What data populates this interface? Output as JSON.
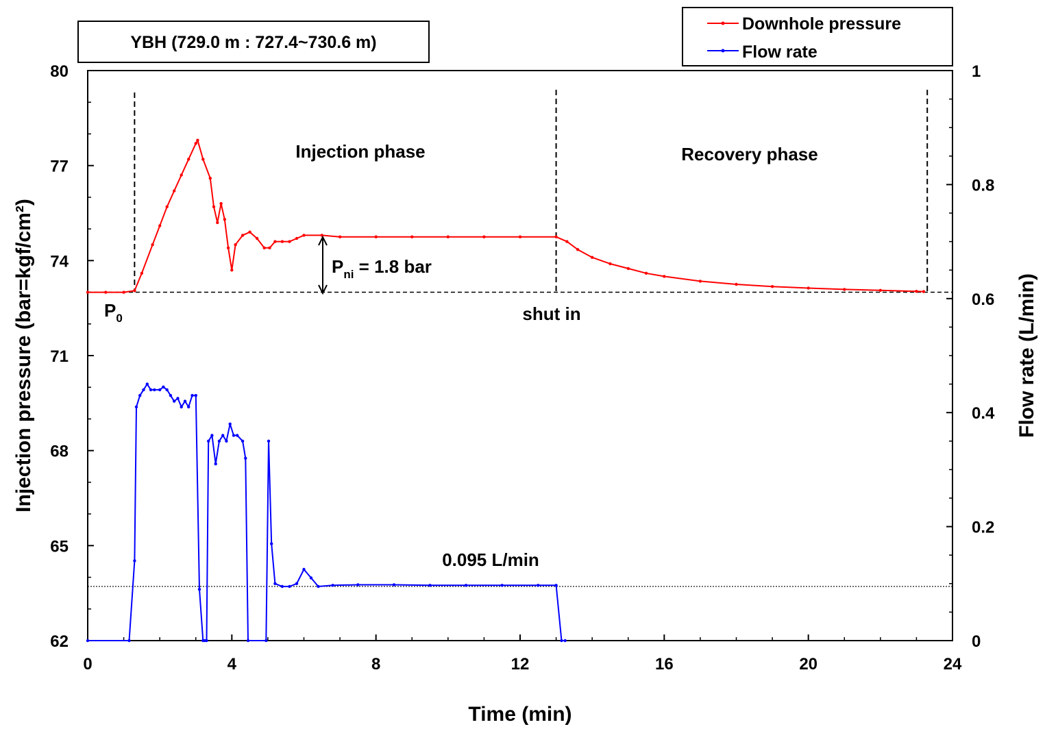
{
  "chart_data": {
    "type": "line",
    "title": "YBH (729.0 m : 727.4~730.6 m)",
    "xlabel": "Time (min)",
    "ylabel_left": "Injection pressure (bar=kgf/cm²)",
    "ylabel_right": "Flow rate (L/min)",
    "xlim": [
      0,
      24
    ],
    "ylim_left": [
      62,
      80
    ],
    "ylim_right": [
      0,
      1
    ],
    "x_ticks": [
      0,
      4,
      8,
      12,
      16,
      20,
      24
    ],
    "y_left_ticks": [
      62,
      65,
      68,
      71,
      74,
      77,
      80
    ],
    "y_right_ticks": [
      0,
      0.2,
      0.4,
      0.6,
      0.8,
      1
    ],
    "colors": {
      "pressure": "#ff0000",
      "flow": "#0000ff",
      "axis": "#000000"
    },
    "legend_position": "top-right",
    "series": [
      {
        "name": "Downhole pressure",
        "axis": "left",
        "color": "#ff0000",
        "x": [
          0,
          0.5,
          1.0,
          1.3,
          1.5,
          1.8,
          2.0,
          2.2,
          2.4,
          2.6,
          2.8,
          3.0,
          3.05,
          3.2,
          3.4,
          3.5,
          3.6,
          3.7,
          3.8,
          3.9,
          4.0,
          4.1,
          4.3,
          4.5,
          4.7,
          4.9,
          5.05,
          5.2,
          5.4,
          5.6,
          5.8,
          6.0,
          6.5,
          7.0,
          8.0,
          9.0,
          10.0,
          11.0,
          12.0,
          13.0,
          13.3,
          13.6,
          14.0,
          14.5,
          15.0,
          15.5,
          16.0,
          17.0,
          18.0,
          19.0,
          20.0,
          21.0,
          22.0,
          23.0,
          23.2
        ],
        "y": [
          73.0,
          73.0,
          73.0,
          73.05,
          73.6,
          74.5,
          75.1,
          75.7,
          76.2,
          76.7,
          77.2,
          77.7,
          77.8,
          77.2,
          76.6,
          75.7,
          75.2,
          75.8,
          75.3,
          74.4,
          73.7,
          74.5,
          74.8,
          74.9,
          74.7,
          74.4,
          74.4,
          74.6,
          74.6,
          74.6,
          74.7,
          74.8,
          74.8,
          74.75,
          74.75,
          74.75,
          74.75,
          74.75,
          74.75,
          74.75,
          74.6,
          74.35,
          74.1,
          73.9,
          73.75,
          73.6,
          73.5,
          73.35,
          73.25,
          73.18,
          73.13,
          73.09,
          73.06,
          73.03,
          73.02
        ]
      },
      {
        "name": "Flow rate",
        "axis": "right",
        "color": "#0000ff",
        "x": [
          0,
          1.15,
          1.3,
          1.35,
          1.45,
          1.55,
          1.65,
          1.75,
          1.85,
          2.0,
          2.1,
          2.2,
          2.3,
          2.4,
          2.5,
          2.6,
          2.7,
          2.8,
          2.9,
          3.0,
          3.1,
          3.2,
          3.25,
          3.3,
          3.35,
          3.45,
          3.55,
          3.65,
          3.75,
          3.85,
          3.95,
          4.05,
          4.15,
          4.3,
          4.38,
          4.45,
          4.95,
          5.02,
          5.1,
          5.2,
          5.4,
          5.6,
          5.8,
          6.0,
          6.2,
          6.4,
          6.8,
          7.5,
          8.5,
          9.5,
          10.5,
          11.5,
          12.5,
          13.0,
          13.15,
          13.25
        ],
        "y": [
          0,
          0,
          0.14,
          0.41,
          0.43,
          0.44,
          0.45,
          0.44,
          0.44,
          0.44,
          0.445,
          0.44,
          0.43,
          0.42,
          0.425,
          0.41,
          0.42,
          0.41,
          0.43,
          0.43,
          0.09,
          0.0,
          0.0,
          0.0,
          0.35,
          0.36,
          0.31,
          0.35,
          0.36,
          0.35,
          0.38,
          0.36,
          0.36,
          0.35,
          0.32,
          0.0,
          0.0,
          0.35,
          0.17,
          0.1,
          0.095,
          0.095,
          0.1,
          0.125,
          0.11,
          0.095,
          0.097,
          0.098,
          0.098,
          0.097,
          0.097,
          0.097,
          0.097,
          0.097,
          0.0,
          0.0
        ]
      }
    ],
    "reference_lines": {
      "p0_pressure": 73.0,
      "flow_baseline": 0.095,
      "injection_start_x": 1.3,
      "shut_in_x": 13.0,
      "end_x": 23.3
    },
    "annotations": {
      "injection_phase": "Injection phase",
      "recovery_phase": "Recovery phase",
      "p0_label": "P",
      "p0_sub": "0",
      "pni_label": "P",
      "pni_sub": "ni",
      "pni_value": " = 1.8 bar",
      "shut_in": "shut in",
      "flow_rate_label": "0.095 L/min"
    }
  }
}
